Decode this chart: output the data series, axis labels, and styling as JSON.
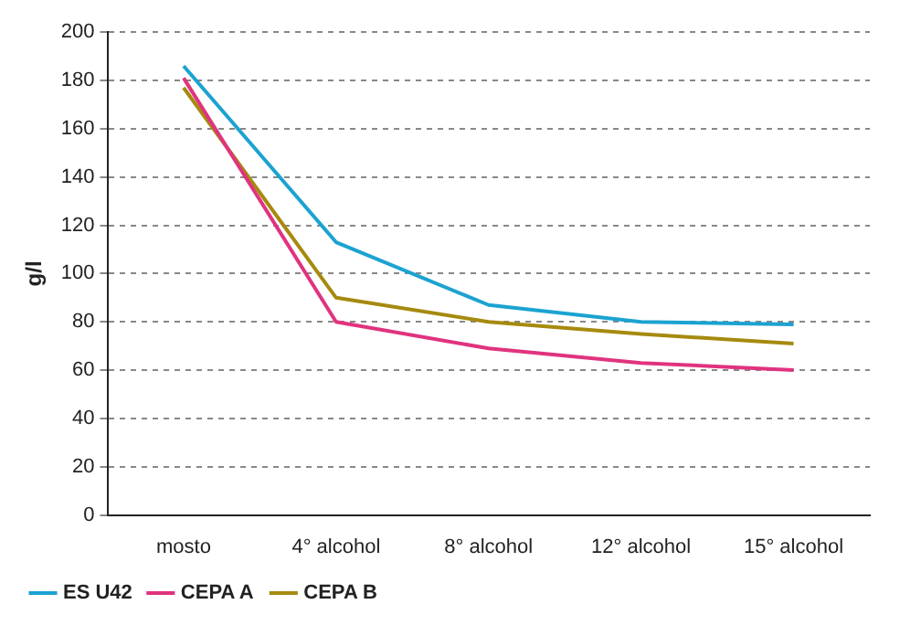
{
  "chart_data": {
    "type": "line",
    "ylabel": "g/l",
    "categories": [
      "mosto",
      "4° alcohol",
      "8° alcohol",
      "12° alcohol",
      "15° alcohol"
    ],
    "series": [
      {
        "name": "ES U42",
        "color": "#1ba3d1",
        "values": [
          186,
          113,
          87,
          80,
          79
        ]
      },
      {
        "name": "CEPA A",
        "color": "#e0337f",
        "values": [
          181,
          80,
          69,
          63,
          60
        ]
      },
      {
        "name": "CEPA B",
        "color": "#a68a0f",
        "values": [
          177,
          90,
          80,
          75,
          71
        ]
      }
    ],
    "ylim": [
      0,
      200
    ],
    "yticks": [
      0,
      20,
      40,
      60,
      80,
      100,
      120,
      140,
      160,
      180,
      200
    ],
    "grid": "y",
    "legend": "bottom left",
    "marker": "none",
    "line_style": "solid"
  }
}
